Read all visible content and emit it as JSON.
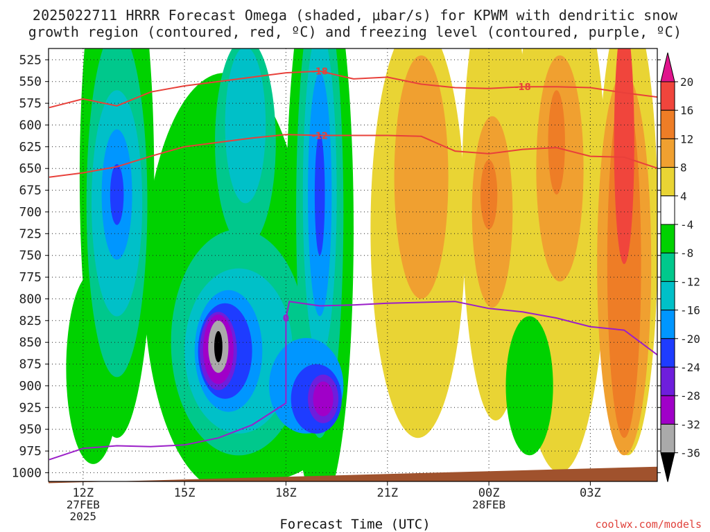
{
  "title_line1": "2025022711 HRRR Forecast Omega (shaded, μbar/s) for KPWM with dendritic snow",
  "title_line2": "growth region (contoured, red, ºC) and freezing level (contoured, purple, ºC)",
  "x_axis_title": "Forecast Time (UTC)",
  "credit": "coolwx.com/models",
  "chart_data": {
    "type": "heatmap",
    "title": "2025022711 HRRR Forecast Omega (shaded, μbar/s) for KPWM with dendritic snow growth region (contoured, red, ºC) and freezing level (contoured, purple, ºC)",
    "xlabel": "Forecast Time (UTC)",
    "ylabel": "",
    "y_axis": {
      "unit": "hPa",
      "reversed": true,
      "ticks": [
        525,
        550,
        575,
        600,
        625,
        650,
        675,
        700,
        725,
        750,
        775,
        800,
        825,
        850,
        875,
        900,
        925,
        950,
        975,
        1000
      ]
    },
    "x_axis": {
      "range_hours": [
        11,
        29
      ],
      "ticks": [
        {
          "hour": 12,
          "label": "12Z",
          "sub1": "27FEB",
          "sub2": "2025"
        },
        {
          "hour": 15,
          "label": "15Z",
          "sub1": "",
          "sub2": ""
        },
        {
          "hour": 18,
          "label": "18Z",
          "sub1": "",
          "sub2": ""
        },
        {
          "hour": 21,
          "label": "21Z",
          "sub1": "",
          "sub2": ""
        },
        {
          "hour": 24,
          "label": "00Z",
          "sub1": "28FEB",
          "sub2": ""
        },
        {
          "hour": 27,
          "label": "03Z",
          "sub1": "",
          "sub2": ""
        }
      ]
    },
    "grid": true,
    "colorbar": {
      "location": "right",
      "ticks": [
        20,
        16,
        12,
        8,
        4,
        -4,
        -8,
        -12,
        -16,
        -20,
        -24,
        -28,
        -32,
        -36
      ],
      "bins": [
        {
          "from": 20,
          "to": null,
          "color": "#e0148c"
        },
        {
          "from": 16,
          "to": 20,
          "color": "#f0453c"
        },
        {
          "from": 12,
          "to": 16,
          "color": "#ee7d26"
        },
        {
          "from": 8,
          "to": 12,
          "color": "#f0a030"
        },
        {
          "from": 4,
          "to": 8,
          "color": "#e9d434"
        },
        {
          "from": -4,
          "to": 4,
          "color": "#ffffff"
        },
        {
          "from": -8,
          "to": -4,
          "color": "#00d200"
        },
        {
          "from": -12,
          "to": -8,
          "color": "#00c88c"
        },
        {
          "from": -16,
          "to": -12,
          "color": "#00c0c8"
        },
        {
          "from": -20,
          "to": -16,
          "color": "#0096ff"
        },
        {
          "from": -24,
          "to": -20,
          "color": "#1e3cff"
        },
        {
          "from": -28,
          "to": -24,
          "color": "#6e1edc"
        },
        {
          "from": -32,
          "to": -28,
          "color": "#a000c8"
        },
        {
          "from": -36,
          "to": -32,
          "color": "#aaaaaa"
        },
        {
          "from": null,
          "to": -36,
          "color": "#000000"
        }
      ]
    },
    "omega_features": [
      {
        "desc": "rising motion core near 12-13Z aloft",
        "hour": 13.0,
        "p": 680,
        "min": -22
      },
      {
        "desc": "strongest rising motion near 16Z",
        "hour": 16.0,
        "p": 855,
        "min": -40
      },
      {
        "desc": "secondary rising core near 19Z",
        "hour": 19.0,
        "p": 680,
        "min": -22
      },
      {
        "desc": "low-level rising core near 19Z",
        "hour": 19.0,
        "p": 915,
        "min": -30
      },
      {
        "desc": "sinking motion near 22Z",
        "hour": 22.0,
        "p": 700,
        "min": 12
      },
      {
        "desc": "sinking motion near 00Z",
        "hour": 24.0,
        "p": 690,
        "min": 14
      },
      {
        "desc": "sinking motion near 02Z",
        "hour": 26.0,
        "p": 625,
        "min": 16
      },
      {
        "desc": "strongest sinking motion near 04Z",
        "hour": 28.0,
        "p": 600,
        "min": 18
      }
    ],
    "contours": [
      {
        "name": "-18",
        "color": "#e8403a",
        "label": "-18",
        "points": [
          [
            11,
            580
          ],
          [
            12,
            570
          ],
          [
            13,
            578
          ],
          [
            14,
            562
          ],
          [
            15,
            555
          ],
          [
            16,
            550
          ],
          [
            17,
            545
          ],
          [
            18,
            540
          ],
          [
            19,
            538
          ],
          [
            20,
            547
          ],
          [
            21,
            545
          ],
          [
            22,
            553
          ],
          [
            23,
            557
          ],
          [
            24,
            558
          ],
          [
            25,
            556
          ],
          [
            26,
            556
          ],
          [
            27,
            557
          ],
          [
            28,
            563
          ],
          [
            29,
            568
          ]
        ]
      },
      {
        "name": "-12",
        "color": "#e8403a",
        "label": "-12",
        "points": [
          [
            11,
            660
          ],
          [
            12,
            655
          ],
          [
            13,
            648
          ],
          [
            14,
            636
          ],
          [
            15,
            625
          ],
          [
            16,
            620
          ],
          [
            17,
            615
          ],
          [
            18,
            611
          ],
          [
            19,
            612
          ],
          [
            20,
            612
          ],
          [
            21,
            612
          ],
          [
            22,
            613
          ],
          [
            23,
            630
          ],
          [
            24,
            633
          ],
          [
            25,
            628
          ],
          [
            26,
            626
          ],
          [
            27,
            636
          ],
          [
            28,
            637
          ],
          [
            29,
            650
          ]
        ]
      },
      {
        "name": "0",
        "color": "#9b1ec8",
        "label": "0",
        "points": [
          [
            11,
            985
          ],
          [
            12,
            972
          ],
          [
            13,
            969
          ],
          [
            14,
            970
          ],
          [
            15,
            968
          ],
          [
            16,
            960
          ],
          [
            17,
            945
          ],
          [
            18,
            920
          ],
          [
            18.0,
            822
          ],
          [
            18.1,
            803
          ],
          [
            19,
            808
          ],
          [
            20,
            807
          ],
          [
            21,
            805
          ],
          [
            22,
            804
          ],
          [
            23,
            803
          ],
          [
            24,
            811
          ],
          [
            25,
            815
          ],
          [
            26,
            822
          ],
          [
            27,
            832
          ],
          [
            28,
            836
          ],
          [
            29,
            865
          ]
        ]
      }
    ],
    "terrain": {
      "color": "#a0522d",
      "surface_pressure_start": 1012,
      "surface_pressure_end": 993
    }
  }
}
